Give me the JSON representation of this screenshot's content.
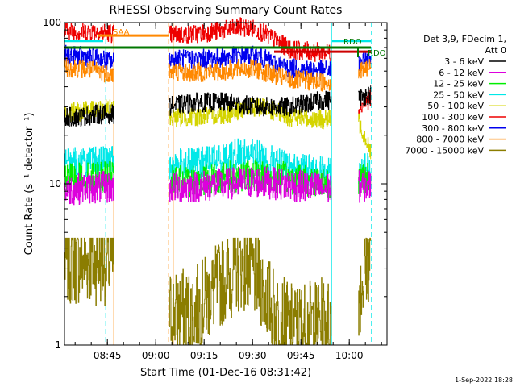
{
  "chart_data": {
    "type": "line",
    "title": "RHESSI Observing Summary Count Rates",
    "xlabel": "Start Time (01-Dec-16 08:31:42)",
    "ylabel": "Count Rate (s⁻¹ detector⁻¹)",
    "yscale": "log",
    "ylim": [
      1,
      100
    ],
    "xlim_minutes": [
      0,
      100
    ],
    "x_ticks": [
      {
        "label": "08:45",
        "min": 13.3
      },
      {
        "label": "09:00",
        "min": 28.3
      },
      {
        "label": "09:15",
        "min": 43.3
      },
      {
        "label": "09:30",
        "min": 58.3
      },
      {
        "label": "09:45",
        "min": 73.3
      },
      {
        "label": "10:00",
        "min": 88.3
      }
    ],
    "y_ticks": [
      {
        "label": "1",
        "v": 1
      },
      {
        "label": "10",
        "v": 10
      },
      {
        "label": "100",
        "v": 100
      }
    ],
    "legend": {
      "placement": "right",
      "header": [
        "Det 3,9, FDecim 1,",
        "Att 0"
      ],
      "entries": [
        {
          "label": "3 - 6 keV",
          "color": "#000000"
        },
        {
          "label": "6 - 12 keV",
          "color": "#dd00dd"
        },
        {
          "label": "12 - 25 keV",
          "color": "#00ee00"
        },
        {
          "label": "25 - 50 keV",
          "color": "#00e8e8"
        },
        {
          "label": "50 - 100 keV",
          "color": "#d4d400"
        },
        {
          "label": "100 - 300 keV",
          "color": "#ee0000"
        },
        {
          "label": "300 - 800 keV",
          "color": "#0000ee"
        },
        {
          "label": "800 - 7000 keV",
          "color": "#ff8800"
        },
        {
          "label": "7000 - 15000 keV",
          "color": "#8b7d00"
        }
      ]
    },
    "data_gaps_minutes": [
      [
        15.3,
        32.5
      ],
      [
        82.8,
        91.0
      ]
    ],
    "series": [
      {
        "name": "3 - 6 keV",
        "color": "#000000",
        "x": [
          0,
          5,
          10,
          15.3,
          41,
          50,
          60,
          70,
          80,
          82.8,
          91,
          95
        ],
        "y": [
          26,
          26,
          27,
          27,
          32,
          32,
          30,
          30,
          33,
          33,
          34,
          36
        ]
      },
      {
        "name": "6 - 12 keV",
        "color": "#dd00dd",
        "x": [
          0,
          5,
          10,
          15.3,
          32.5,
          40,
          50,
          60,
          70,
          80,
          82.8,
          91,
          95
        ],
        "y": [
          9.2,
          9.4,
          9.5,
          9.5,
          9.5,
          9.6,
          10,
          10.3,
          9.8,
          9.4,
          9.4,
          9.6,
          9.8
        ]
      },
      {
        "name": "12 - 25 keV",
        "color": "#00ee00",
        "x": [
          0,
          5,
          10,
          15.3,
          32.5,
          40,
          50,
          60,
          70,
          80,
          82.8,
          91,
          95
        ],
        "y": [
          10.5,
          10.8,
          11,
          11,
          10.3,
          10.5,
          11,
          11.3,
          10.8,
          10.3,
          10.3,
          10.5,
          11
        ]
      },
      {
        "name": "25 - 50 keV",
        "color": "#00e8e8",
        "x": [
          0,
          5,
          10,
          15.3,
          32.5,
          40,
          50,
          55,
          60,
          65,
          70,
          80,
          82.8,
          91,
          95
        ],
        "y": [
          13.5,
          13.5,
          13.5,
          14,
          13,
          13.3,
          14.5,
          15.5,
          15,
          13.5,
          12.5,
          12,
          12.5,
          12,
          12.5
        ]
      },
      {
        "name": "50 - 100 keV",
        "color": "#d4d400",
        "x": [
          0,
          5,
          10,
          15.3,
          32.5,
          40,
          50,
          55,
          60,
          65,
          70,
          80,
          82.8,
          91,
          95
        ],
        "y": [
          28,
          28,
          29,
          29,
          26,
          26,
          27,
          29,
          30,
          28,
          26,
          25,
          25,
          25,
          16
        ]
      },
      {
        "name": "100 - 300 keV",
        "color": "#ee0000",
        "x": [
          0,
          5,
          10,
          15.3,
          32.5,
          40,
          50,
          55,
          60,
          65,
          70,
          80,
          82.8,
          91,
          95
        ],
        "y": [
          88,
          88,
          88,
          86,
          84,
          85,
          90,
          94,
          90,
          78,
          68,
          65,
          65,
          30,
          34
        ]
      },
      {
        "name": "300 - 800 keV",
        "color": "#0000ee",
        "x": [
          0,
          5,
          10,
          15.3,
          32.5,
          40,
          50,
          55,
          60,
          65,
          70,
          80,
          82.8,
          91,
          95
        ],
        "y": [
          63,
          62,
          60,
          57,
          60,
          59,
          61,
          63,
          62,
          56,
          52,
          51,
          51,
          55,
          62
        ]
      },
      {
        "name": "800 - 7000 keV",
        "color": "#ff8800",
        "x": [
          0,
          5,
          10,
          15.3,
          32.5,
          40,
          50,
          55,
          60,
          65,
          70,
          80,
          82.8,
          91,
          95
        ],
        "y": [
          53,
          52,
          50,
          48,
          50,
          49,
          50,
          52,
          51,
          47,
          44,
          43,
          43,
          49,
          53
        ]
      },
      {
        "name": "7000 - 15000 keV",
        "color": "#8b7d00",
        "x": [
          0,
          5,
          10,
          15.3,
          32.5,
          40,
          50,
          55,
          60,
          65,
          70,
          80,
          82.8,
          91,
          95
        ],
        "y": [
          3.3,
          3.3,
          3.3,
          3.3,
          1.6,
          1.6,
          2.6,
          3.1,
          2.6,
          1.6,
          1.3,
          1.4,
          1.4,
          2,
          4
        ]
      }
    ],
    "annotations": [
      {
        "text": "SAA",
        "color": "#ff8800",
        "segment_minutes": [
          10.5,
          32.5
        ],
        "level": 83
      },
      {
        "text": "RDO",
        "color": "#007700",
        "segment_minutes": [
          0,
          95
        ],
        "level": 70
      },
      {
        "text": "RDO",
        "color": "#007700",
        "segment_minutes": [
          91,
          95
        ],
        "level": 70
      }
    ],
    "flag_bars": [
      {
        "color": "#00e8e8",
        "segment_minutes": [
          0,
          12
        ],
        "level": 77
      },
      {
        "color": "#00e8e8",
        "segment_minutes": [
          83,
          95
        ],
        "level": 77
      },
      {
        "color": "#cc0000",
        "segment_minutes": [
          65,
          95
        ],
        "level": 66
      }
    ],
    "vertical_markers": [
      {
        "color": "#00e8e8",
        "style": "solid",
        "min": 0
      },
      {
        "color": "#00e8e8",
        "style": "dashed",
        "min": 12.8
      },
      {
        "color": "#ff8800",
        "style": "solid",
        "min": 15.3
      },
      {
        "color": "#ff8800",
        "style": "dashed",
        "min": 32.3
      },
      {
        "color": "#ff8800",
        "style": "solid",
        "min": 33.7
      },
      {
        "color": "#00e8e8",
        "style": "solid",
        "min": 82.8
      },
      {
        "color": "#00e8e8",
        "style": "dashed",
        "min": 95.2
      }
    ],
    "timestamp": "1-Sep-2022 18:28"
  }
}
